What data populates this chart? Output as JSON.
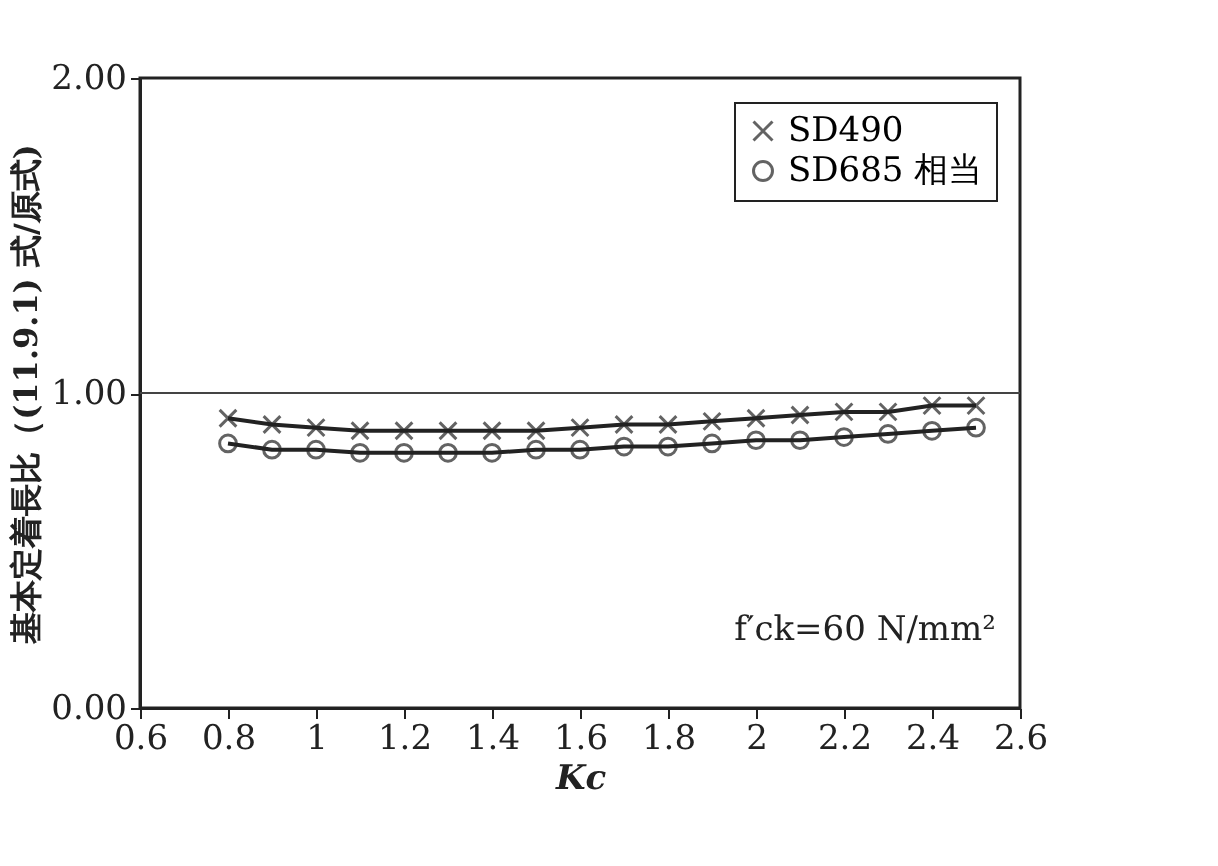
{
  "chart_data": {
    "type": "line",
    "xlabel": "Kc",
    "ylabel": "基本定着長比（(11.9.1) 式/原式)",
    "x": [
      0.8,
      0.9,
      1.0,
      1.1,
      1.2,
      1.3,
      1.4,
      1.5,
      1.6,
      1.7,
      1.8,
      1.9,
      2.0,
      2.1,
      2.2,
      2.3,
      2.4,
      2.5
    ],
    "series": [
      {
        "name": "SD490",
        "color": "#222222",
        "marker": "cross",
        "values": [
          0.92,
          0.9,
          0.89,
          0.88,
          0.88,
          0.88,
          0.88,
          0.88,
          0.89,
          0.9,
          0.9,
          0.91,
          0.92,
          0.93,
          0.94,
          0.94,
          0.96,
          0.96
        ]
      },
      {
        "name": "SD685 相当",
        "color": "#222222",
        "marker": "circle",
        "values": [
          0.84,
          0.82,
          0.82,
          0.81,
          0.81,
          0.81,
          0.81,
          0.82,
          0.82,
          0.83,
          0.83,
          0.84,
          0.85,
          0.85,
          0.86,
          0.87,
          0.88,
          0.89
        ]
      }
    ],
    "xlim": [
      0.6,
      2.6
    ],
    "xticks": [
      0.6,
      0.8,
      1,
      1.2,
      1.4,
      1.6,
      1.8,
      2,
      2.2,
      2.4,
      2.6
    ],
    "ylim": [
      0,
      2
    ],
    "yticks": [
      {
        "value": 0,
        "label": "0.00"
      },
      {
        "value": 1,
        "label": "1.00"
      },
      {
        "value": 2,
        "label": "2.00"
      }
    ],
    "ref_lines": [
      {
        "axis": "y",
        "value": 1,
        "label": null,
        "color": "#444444"
      }
    ],
    "annotations": [
      {
        "text": "f′ck=60 N/mm²"
      }
    ],
    "legend": "top right",
    "grid": false,
    "line_style": "solid"
  }
}
